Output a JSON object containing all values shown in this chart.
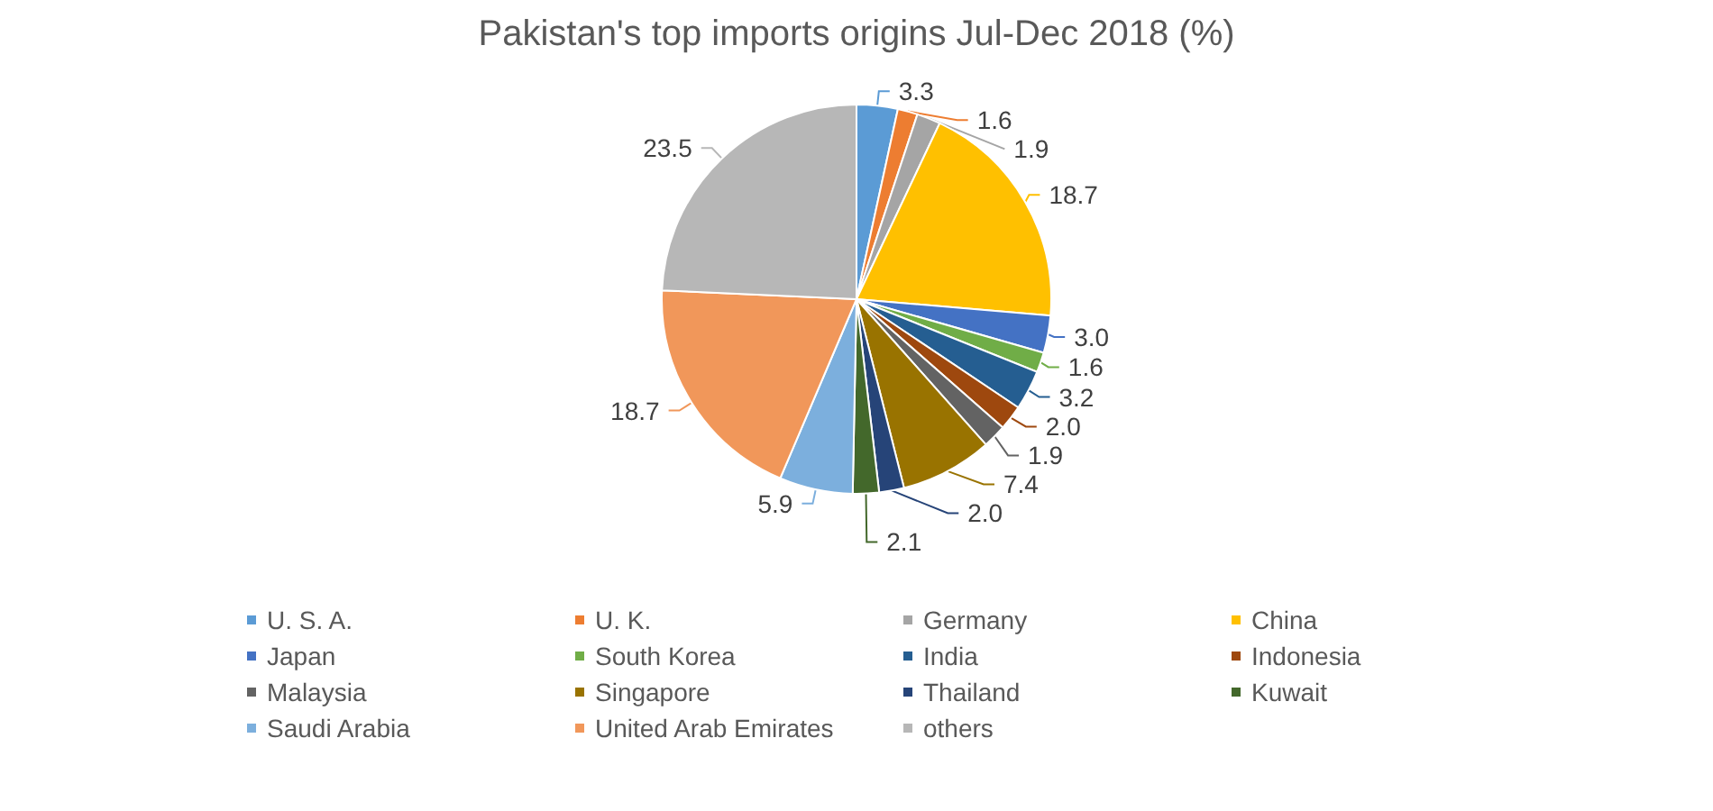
{
  "chart_data": {
    "type": "pie",
    "title": "Pakistan's top imports origins Jul-Dec 2018 (%)",
    "categories": [
      "U. S. A.",
      "U. K.",
      "Germany",
      "China",
      "Japan",
      "South Korea",
      "India",
      "Indonesia",
      "Malaysia",
      "Singapore",
      "Thailand",
      "Kuwait",
      "Saudi Arabia",
      "United Arab Emirates",
      "others"
    ],
    "values": [
      3.3,
      1.6,
      1.9,
      18.7,
      3.0,
      1.6,
      3.2,
      2.0,
      1.9,
      7.4,
      2.0,
      2.1,
      5.9,
      18.7,
      23.5
    ],
    "colors": [
      "#5b9bd5",
      "#ed7d31",
      "#a5a5a5",
      "#ffc000",
      "#4472c4",
      "#70ad47",
      "#255e91",
      "#9e480e",
      "#636363",
      "#997300",
      "#264478",
      "#43682b",
      "#7cafdd",
      "#f1975a",
      "#b7b7b7"
    ],
    "value_labels": [
      "3.3",
      "1.6",
      "1.9",
      "18.7",
      "3.0",
      "1.6",
      "3.2",
      "2.0",
      "1.9",
      "7.4",
      "2.0",
      "2.1",
      "5.9",
      "18.7",
      "23.5"
    ],
    "legend": "bottom"
  }
}
